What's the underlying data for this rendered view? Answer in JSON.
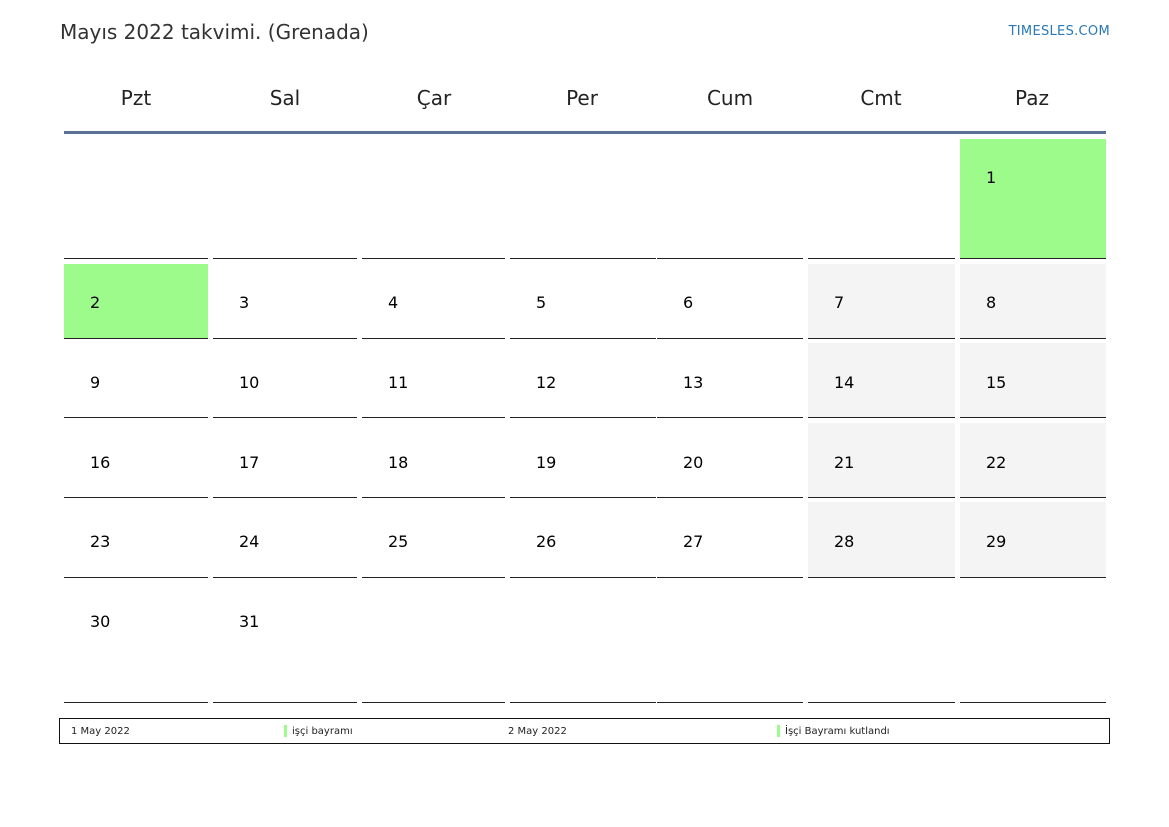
{
  "header": {
    "title": "Mayıs 2022 takvimi. (Grenada)",
    "brand": "TIMESLES.COM"
  },
  "weekdays": [
    "Pzt",
    "Sal",
    "Çar",
    "Per",
    "Cum",
    "Cmt",
    "Paz"
  ],
  "colors": {
    "holiday": "#9cfb8a",
    "weekend": "#f4f4f4",
    "header_line": "#5a7194",
    "brand": "#2a78b6"
  },
  "weeks": [
    [
      "",
      "",
      "",
      "",
      "",
      "",
      "1"
    ],
    [
      "2",
      "3",
      "4",
      "5",
      "6",
      "7",
      "8"
    ],
    [
      "9",
      "10",
      "11",
      "12",
      "13",
      "14",
      "15"
    ],
    [
      "16",
      "17",
      "18",
      "19",
      "20",
      "21",
      "22"
    ],
    [
      "23",
      "24",
      "25",
      "26",
      "27",
      "28",
      "29"
    ],
    [
      "30",
      "31",
      "",
      "",
      "",
      "",
      ""
    ]
  ],
  "holidays": [
    "1",
    "2"
  ],
  "legend": {
    "item1_date": "1 May 2022",
    "item1_name": "işçi bayramı",
    "item2_date": "2 May 2022",
    "item2_name": "İşçi Bayramı kutlandı"
  }
}
